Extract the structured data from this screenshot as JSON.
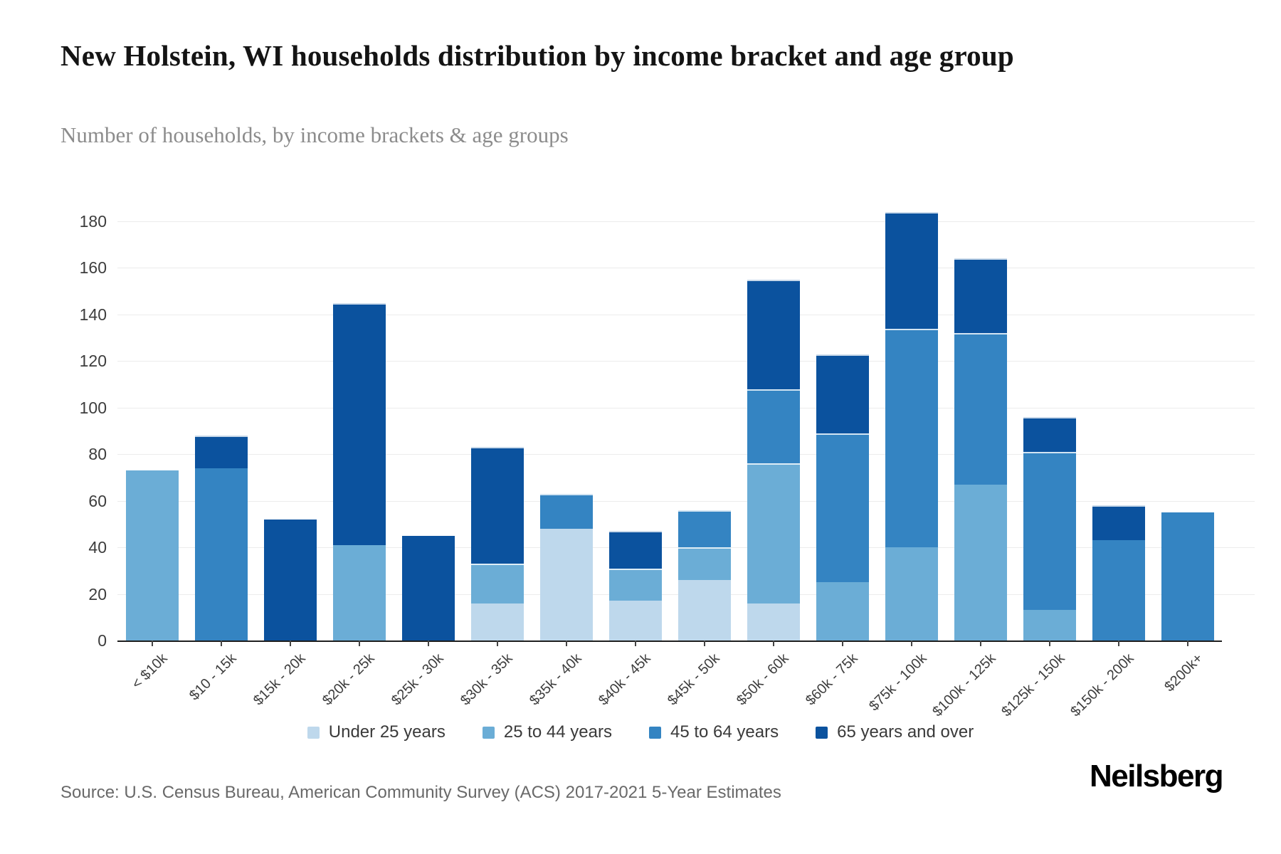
{
  "header": {
    "title": "New Holstein, WI households distribution by income bracket and age group",
    "subtitle": "Number of households, by income brackets & age groups"
  },
  "chart_data": {
    "type": "bar",
    "stacked": true,
    "title": "New Holstein, WI households distribution by income bracket and age group",
    "xlabel": "",
    "ylabel": "Number of households",
    "ylim": [
      0,
      180
    ],
    "ytick_step": 20,
    "yticks": [
      0,
      20,
      40,
      60,
      80,
      100,
      120,
      140,
      160,
      180
    ],
    "grid": true,
    "legend_position": "bottom",
    "categories": [
      "< $10k",
      "$10 - 15k",
      "$15k - 20k",
      "$20k - 25k",
      "$25k - 30k",
      "$30k - 35k",
      "$35k - 40k",
      "$40k - 45k",
      "$45k - 50k",
      "$50k - 60k",
      "$60k - 75k",
      "$75k - 100k",
      "$100k - 125k",
      "$125k - 150k",
      "$150k - 200k",
      "$200k+"
    ],
    "series": [
      {
        "name": "Under 25 years",
        "color": "#bed8ec",
        "values": [
          0,
          0,
          0,
          0,
          0,
          16,
          48,
          17,
          26,
          16,
          0,
          0,
          0,
          0,
          0,
          0
        ]
      },
      {
        "name": "25 to 44 years",
        "color": "#6badd6",
        "values": [
          73,
          0,
          0,
          41,
          0,
          17,
          0,
          14,
          14,
          60,
          25,
          40,
          67,
          13,
          0,
          0
        ]
      },
      {
        "name": "45 to 64 years",
        "color": "#3484c2",
        "values": [
          0,
          74,
          0,
          0,
          0,
          0,
          15,
          0,
          16,
          32,
          64,
          94,
          65,
          68,
          43,
          55
        ]
      },
      {
        "name": "65 years and over",
        "color": "#0b529e",
        "values": [
          0,
          14,
          52,
          104,
          45,
          50,
          0,
          16,
          0,
          47,
          34,
          50,
          32,
          15,
          15,
          0
        ]
      }
    ],
    "totals": [
      73,
      88,
      52,
      145,
      45,
      83,
      63,
      47,
      56,
      155,
      123,
      184,
      164,
      96,
      58,
      55
    ]
  },
  "footer": {
    "source": "Source: U.S. Census Bureau, American Community Survey (ACS) 2017-2021 5-Year Estimates",
    "logo": "Neilsberg"
  }
}
